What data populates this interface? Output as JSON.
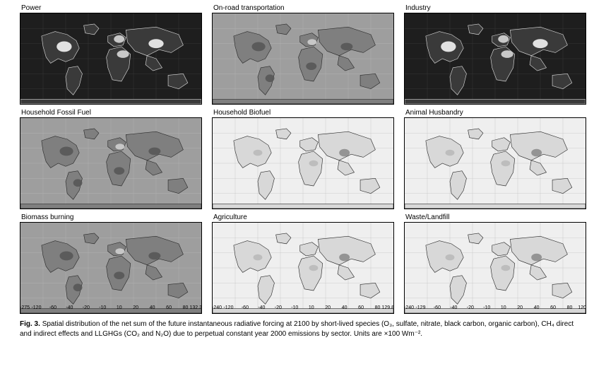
{
  "figure_label": "Fig. 3.",
  "caption_text": "Spatial distribution of the net sum of the future instantaneous radiative forcing at 2100 by short-lived species (O₃, sulfate, nitrate, black carbon, organic carbon), CH₄ direct and indirect effects and LLGHGs (CO₂ and N₂O) due to perpetual constant year 2000 emissions by sector. Units are ×100 Wm⁻².",
  "panels": [
    {
      "id": "power",
      "title": "Power",
      "row": 0,
      "col": 0,
      "style": "dark"
    },
    {
      "id": "onroad",
      "title": "On-road transportation",
      "row": 0,
      "col": 1,
      "style": "medium"
    },
    {
      "id": "industry",
      "title": "Industry",
      "row": 0,
      "col": 2,
      "style": "dark"
    },
    {
      "id": "household_fossil",
      "title": "Household Fossil Fuel",
      "row": 1,
      "col": 0,
      "style": "medium"
    },
    {
      "id": "household_bio",
      "title": "Household Biofuel",
      "row": 1,
      "col": 1,
      "style": "light"
    },
    {
      "id": "animal",
      "title": "Animal Husbandry",
      "row": 1,
      "col": 2,
      "style": "light"
    },
    {
      "id": "biomass",
      "title": "Biomass burning",
      "row": 2,
      "col": 0,
      "style": "medium"
    },
    {
      "id": "agriculture",
      "title": "Agriculture",
      "row": 2,
      "col": 1,
      "style": "light"
    },
    {
      "id": "waste",
      "title": "Waste/Landfill",
      "row": 2,
      "col": 2,
      "style": "light"
    }
  ],
  "styles": {
    "dark": {
      "ocean": "#1e1e1e",
      "land_fill": "#3a3a3a",
      "land_stroke": "#dcdcdc",
      "hot1": "#ffffff",
      "hot2": "#e2e2e2"
    },
    "medium": {
      "ocean": "#9e9e9e",
      "land_fill": "#7f7f7f",
      "land_stroke": "#2b2b2b",
      "hot1": "#d4d4d4",
      "hot2": "#555555"
    },
    "light": {
      "ocean": "#efefef",
      "land_fill": "#d8d8d8",
      "land_stroke": "#2b2b2b",
      "hot1": "#b8b8b8",
      "hot2": "#888888"
    }
  },
  "colorbar": {
    "colors": [
      "#0a0a0a",
      "#2c2c2c",
      "#4e4e4e",
      "#707070",
      "#929292",
      "#b4b4b4",
      "#d6d6d6",
      "#f6f6f6",
      "#d6d6d6",
      "#b4b4b4",
      "#929292",
      "#707070",
      "#4e4e4e",
      "#2c2c2c"
    ],
    "columns": [
      {
        "ticks": [
          "-275",
          "-120",
          "-60",
          "-40",
          "-20",
          "-10",
          "10",
          "20",
          "40",
          "60",
          "80",
          "132.3"
        ]
      },
      {
        "ticks": [
          "-240",
          "-120",
          "-60",
          "-40",
          "-20",
          "-10",
          "10",
          "20",
          "40",
          "60",
          "80",
          "129.8"
        ]
      },
      {
        "ticks": [
          "-240",
          "-129",
          "-60",
          "-40",
          "-20",
          "-10",
          "10",
          "20",
          "40",
          "60",
          "80",
          "120"
        ]
      }
    ]
  }
}
